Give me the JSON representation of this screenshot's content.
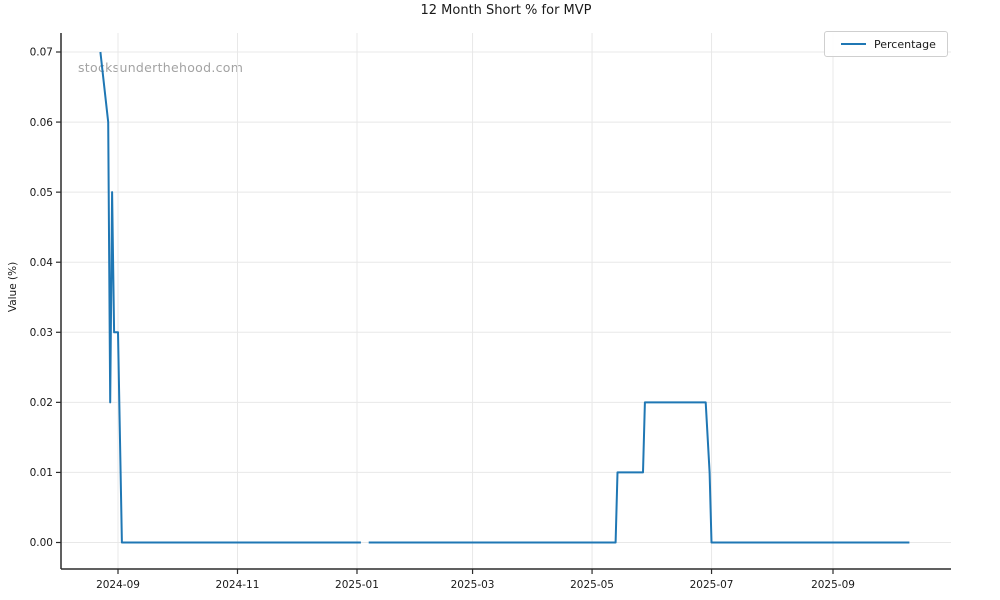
{
  "window": {
    "title": "12 Month Short % for MVP"
  },
  "watermark": {
    "text": "stocksunderthehood.com",
    "color": "#a3a3a3"
  },
  "legend": {
    "position": "upper-right",
    "items": [
      {
        "label": "Percentage",
        "color": "#1f77b4"
      }
    ]
  },
  "colors": {
    "line": "#1f77b4",
    "grid": "#e8e8e8",
    "spine": "#2b2b2b",
    "tick_text": "#1a1a1a",
    "background": "#ffffff"
  },
  "chart_data": {
    "type": "line",
    "title": "12 Month Short % for MVP",
    "xlabel": "",
    "ylabel": "Value (%)",
    "grid": true,
    "legend_position": "upper right",
    "x_tick_labels": [
      "2024-09",
      "2024-11",
      "2025-01",
      "2025-03",
      "2025-05",
      "2025-07",
      "2025-09"
    ],
    "y_tick_labels": [
      "0.00",
      "0.01",
      "0.02",
      "0.03",
      "0.04",
      "0.05",
      "0.06",
      "0.07"
    ],
    "xlim": [
      "2024-08-03",
      "2025-10-31"
    ],
    "ylim": [
      -0.0035,
      0.0735
    ],
    "series": [
      {
        "name": "Percentage",
        "color": "#1f77b4",
        "note": "gap in data between 2025-01-03 and 2025-01-07",
        "segments": [
          [
            [
              "2024-08-23",
              0.07
            ],
            [
              "2024-08-27",
              0.06
            ],
            [
              "2024-08-28",
              0.02
            ],
            [
              "2024-08-29",
              0.05
            ],
            [
              "2024-08-30",
              0.03
            ],
            [
              "2024-09-01",
              0.03
            ],
            [
              "2024-09-03",
              0.0
            ],
            [
              "2025-01-03",
              0.0
            ]
          ],
          [
            [
              "2025-01-07",
              0.0
            ],
            [
              "2025-05-13",
              0.0
            ],
            [
              "2025-05-14",
              0.01
            ],
            [
              "2025-05-27",
              0.01
            ],
            [
              "2025-05-28",
              0.02
            ],
            [
              "2025-06-28",
              0.02
            ],
            [
              "2025-06-30",
              0.01
            ],
            [
              "2025-07-01",
              0.0
            ],
            [
              "2025-10-10",
              0.0
            ]
          ]
        ]
      }
    ]
  }
}
